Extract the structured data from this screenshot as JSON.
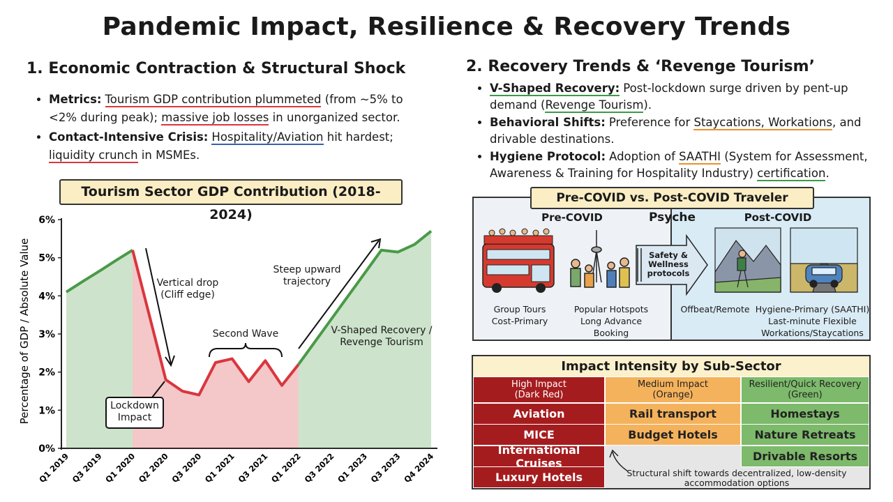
{
  "header": {
    "title": "Pandemic Impact, Resilience & Recovery Trends"
  },
  "section_1": {
    "heading": "1. Economic Contraction & Structural Shock",
    "bullets": [
      {
        "label": "Metrics:",
        "parts": [
          {
            "text": "Tourism GDP contribution plummeted",
            "underline": "#d9363e"
          },
          {
            "text": " (from ~5% to <2% during peak); "
          },
          {
            "text": "massive job losses",
            "underline": "#d9363e"
          },
          {
            "text": " in unorganized sector."
          }
        ]
      },
      {
        "label": "Contact-Intensive Crisis:",
        "parts": [
          {
            "text": "Hospitality/Aviation",
            "underline": "#3a5fb0"
          },
          {
            "text": " hit hardest; "
          },
          {
            "text": "liquidity crunch",
            "underline": "#d9363e"
          },
          {
            "text": " in MSMEs."
          }
        ]
      }
    ]
  },
  "section_2": {
    "heading": "2. Recovery Trends & ‘Revenge Tourism’",
    "bullets": [
      {
        "label": "V-Shaped Recovery:",
        "label_underline": "#3c9a47",
        "parts": [
          {
            "text": "Post-lockdown surge driven by pent-up demand ("
          },
          {
            "text": "Revenge Tourism",
            "underline": "#3c9a47"
          },
          {
            "text": ")."
          }
        ]
      },
      {
        "label": "Behavioral Shifts:",
        "parts": [
          {
            "text": "Preference for "
          },
          {
            "text": "Staycations, Workations",
            "underline": "#e8912d"
          },
          {
            "text": ", and drivable destinations."
          }
        ]
      },
      {
        "label": "Hygiene Protocol:",
        "parts": [
          {
            "text": "Adoption of "
          },
          {
            "text": "SAATHI",
            "underline": "#e8912d"
          },
          {
            "text": " (System for Assessment, Awareness & Training for Hospitality Industry) "
          },
          {
            "text": "certification",
            "underline": "#3c9a47"
          },
          {
            "text": "."
          }
        ]
      }
    ]
  },
  "chart_data": {
    "type": "line",
    "title": "Tourism Sector GDP Contribution (2018-2024)",
    "y_label": "Percentage of GDP / Absolute Value",
    "categories": [
      "Q1 2019",
      null,
      "Q3 2019",
      null,
      "Q1 2020",
      null,
      "Q2 2020",
      null,
      "Q3 2020",
      null,
      "Q1 2021",
      null,
      "Q3 2021",
      null,
      "Q1 2022",
      null,
      "Q3 2022",
      null,
      "Q1 2023",
      null,
      "Q3 2023",
      null,
      "Q4 2024"
    ],
    "series": [
      {
        "color": "#4a9a47",
        "values": [
          4.1,
          4.38,
          4.65,
          4.93,
          5.2,
          null,
          null,
          null,
          null,
          null,
          null,
          null,
          null,
          null,
          null,
          null,
          null,
          null,
          null,
          null,
          null,
          null,
          null
        ]
      },
      {
        "color": "#d9363e",
        "values": [
          null,
          null,
          null,
          null,
          5.2,
          3.5,
          1.8,
          1.5,
          1.4,
          2.25,
          2.35,
          1.75,
          2.3,
          1.65,
          2.2,
          null,
          null,
          null,
          null,
          null,
          null,
          null,
          null
        ]
      },
      {
        "color": "#4a9a47",
        "values": [
          null,
          null,
          null,
          null,
          null,
          null,
          null,
          null,
          null,
          null,
          null,
          null,
          null,
          null,
          2.2,
          2.8,
          3.4,
          4.0,
          4.6,
          5.2,
          5.15,
          5.35,
          5.7
        ]
      }
    ],
    "area_fill": true,
    "ylim": [
      0,
      6
    ],
    "yticks": [
      {
        "value": 0,
        "label": "0%"
      },
      {
        "value": 1,
        "label": "1%"
      },
      {
        "value": 2,
        "label": "2%"
      },
      {
        "value": 3,
        "label": "3%"
      },
      {
        "value": 4,
        "label": "4%"
      },
      {
        "value": 5,
        "label": "5%"
      },
      {
        "value": 6,
        "label": "6%"
      }
    ],
    "annotations": [
      "Vertical drop (Cliff edge)",
      "Second Wave",
      "Steep upward trajectory",
      "V-Shaped Recovery / Revenge Tourism",
      "Lockdown Impact"
    ]
  },
  "psyche_panel": {
    "title": "Pre-COVID vs. Post-COVID Traveler Psyche",
    "pre": {
      "heading": "Pre-COVID",
      "items": [
        [
          "Group Tours",
          "Cost-Primary"
        ],
        [
          "Popular Hotspots",
          "Long Advance Booking"
        ]
      ]
    },
    "transition": "Safety & Wellness protocols",
    "post": {
      "heading": "Post-COVID",
      "items": [
        [
          "Offbeat/Remote"
        ],
        [
          "Hygiene-Primary (SAATHI)",
          "Last-minute Flexible",
          "Workations/Staycations"
        ]
      ]
    }
  },
  "impact_table": {
    "title": "Impact Intensity by Sub-Sector",
    "columns": [
      {
        "header": "High Impact",
        "sub": "(Dark Red)",
        "color": "#a51c1f",
        "items": [
          "Aviation",
          "MICE",
          "International Cruises",
          "Luxury Hotels"
        ]
      },
      {
        "header": "Medium Impact",
        "sub": "(Orange)",
        "color": "#f5b25c",
        "items": [
          "Rail transport",
          "Budget Hotels"
        ]
      },
      {
        "header": "Resilient/Quick Recovery",
        "sub": "(Green)",
        "color": "#7dba6b",
        "items": [
          "Homestays",
          "Nature Retreats",
          "Drivable Resorts"
        ]
      }
    ],
    "note": "Structural shift towards decentralized, low-density accommodation options"
  }
}
